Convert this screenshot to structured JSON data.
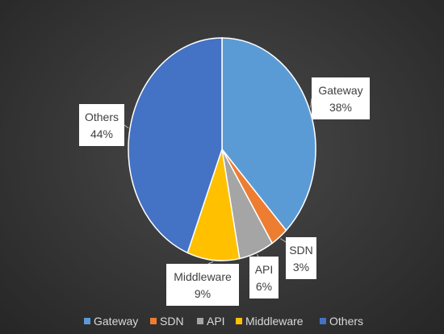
{
  "chart_data": {
    "type": "pie",
    "title": "",
    "categories": [
      "Gateway",
      "SDN",
      "API",
      "Middleware",
      "Others"
    ],
    "values": [
      38,
      3,
      6,
      9,
      44
    ],
    "value_labels": [
      "38%",
      "3%",
      "6%",
      "9%",
      "44%"
    ],
    "colors": [
      "#5b9bd5",
      "#ed7d31",
      "#a5a5a5",
      "#ffc000",
      "#4472c4"
    ],
    "legend": "bottom",
    "data_labels": "callout"
  }
}
